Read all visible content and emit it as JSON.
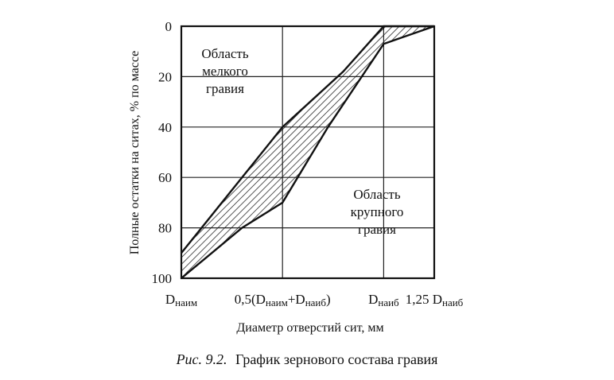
{
  "chart_data": {
    "type": "area",
    "ylabel": "Полные остатки на ситах, % по массе",
    "xlabel": "Диаметр отверстий сит, мм",
    "y_ticks": [
      "0",
      "20",
      "40",
      "60",
      "80",
      "100"
    ],
    "ylim": [
      0,
      100
    ],
    "y_inverted": true,
    "x_positions": [
      0,
      1,
      2,
      2.5
    ],
    "x_ticks": [
      {
        "main": "D",
        "sub": "наим",
        "suffix": ""
      },
      {
        "main": "0,5(D",
        "sub": "наим",
        "mid": "+D",
        "sub2": "наиб",
        "suffix": ")"
      },
      {
        "main": "D",
        "sub": "наиб",
        "suffix": ""
      },
      {
        "main": "1,25 D",
        "sub": "наиб",
        "suffix": ""
      }
    ],
    "xlim": [
      0,
      2.5
    ],
    "grid": true,
    "series": [
      {
        "x": [
          0,
          0.6,
          1.0,
          1.6,
          2.0,
          2.5
        ],
        "y": [
          90,
          60,
          40,
          18,
          0,
          0
        ]
      },
      {
        "x": [
          0,
          0.6,
          1.0,
          1.45,
          2.0,
          2.5
        ],
        "y": [
          100,
          80,
          70,
          40,
          7,
          0
        ]
      }
    ],
    "annotations": [
      {
        "lines": [
          "Область",
          "мелкого",
          "гравия"
        ]
      },
      {
        "lines": [
          "Область",
          "крупного",
          "гравия"
        ]
      }
    ],
    "caption_prefix": "Рис. 9.2.",
    "caption_text": "График зернового состава гравия"
  }
}
